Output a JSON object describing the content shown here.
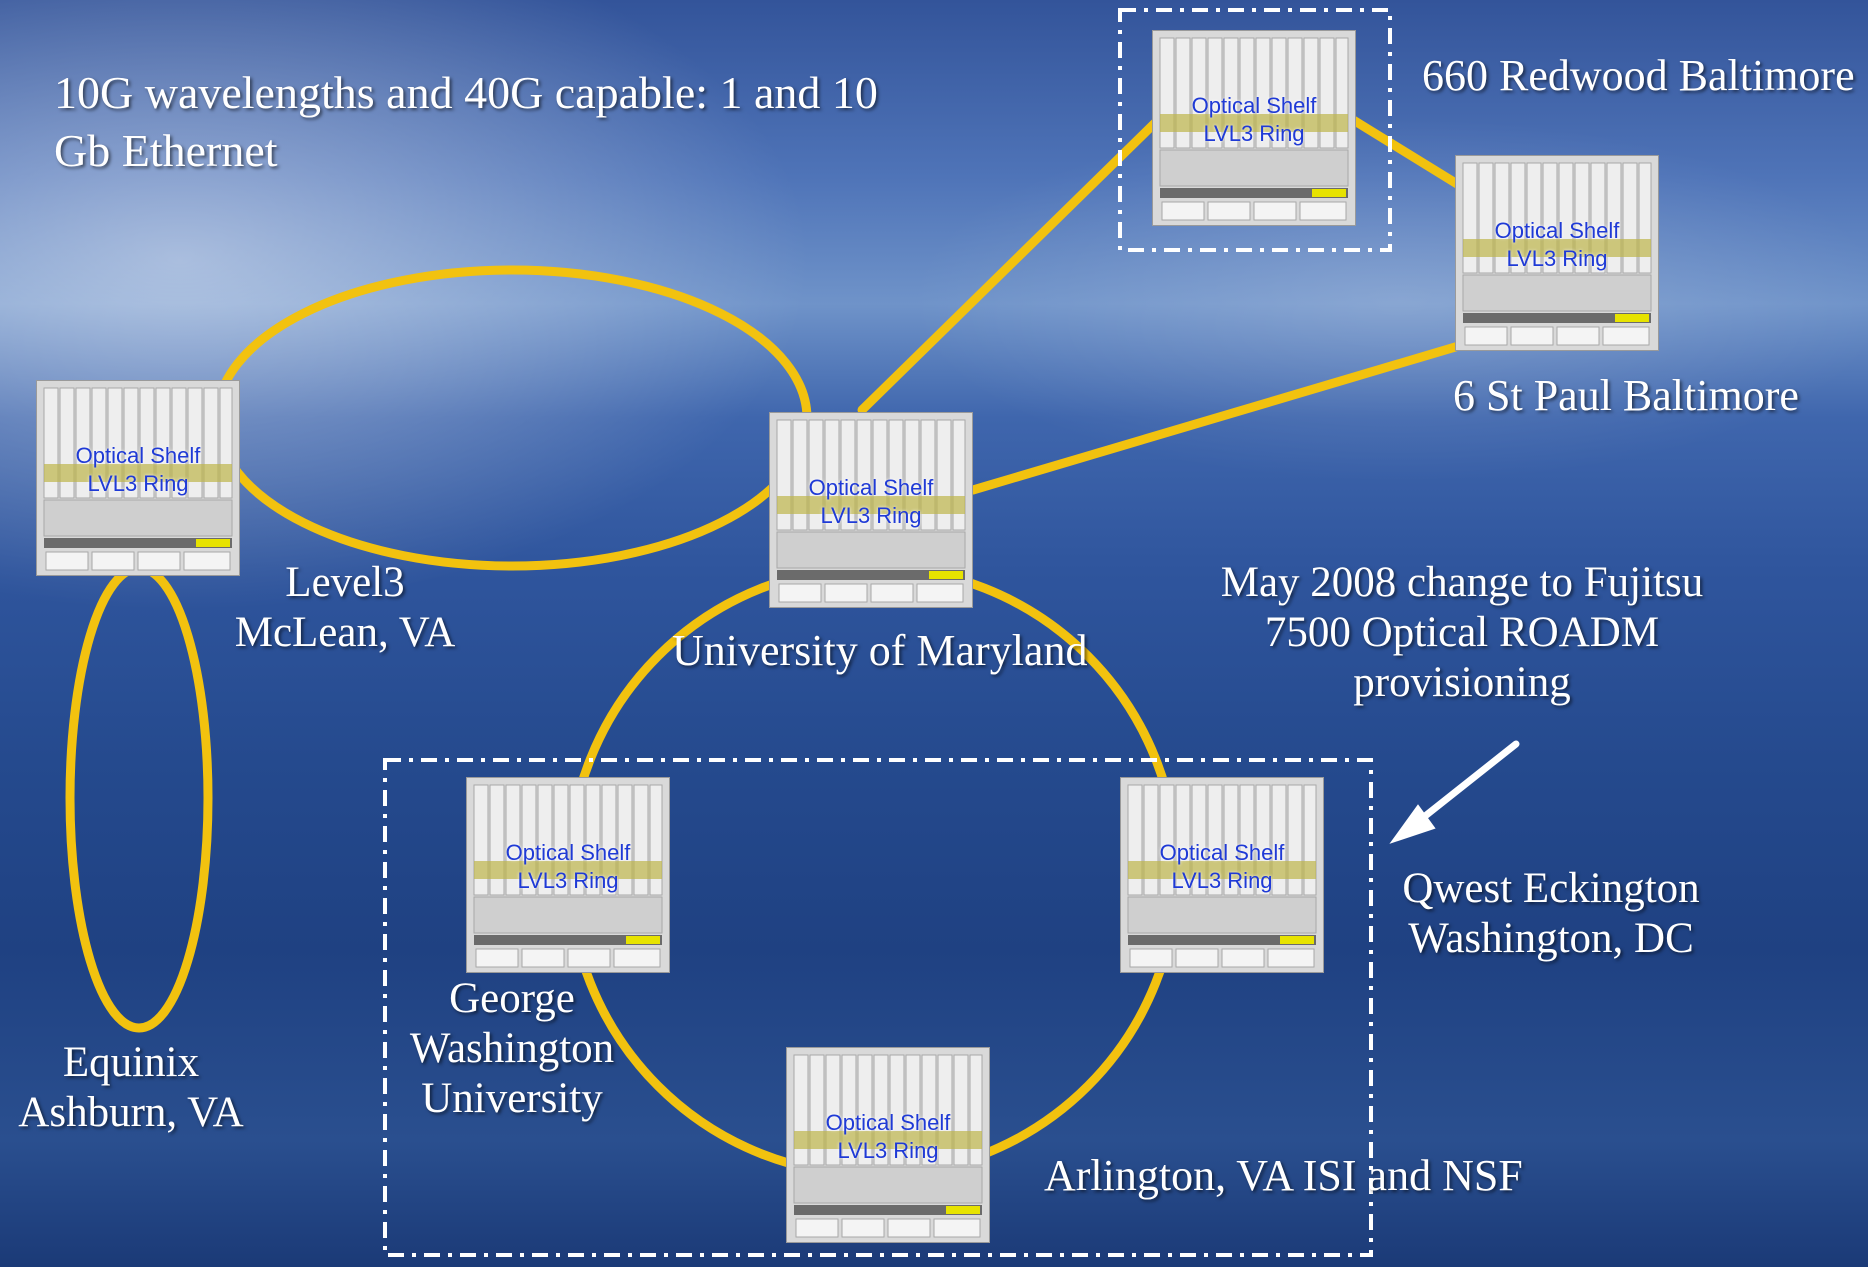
{
  "intro": {
    "line1": "10G wavelengths and 40G capable: 1 and 10",
    "line2": "Gb Ethernet"
  },
  "node_label": {
    "line1": "Optical Shelf",
    "line2": "LVL3 Ring"
  },
  "sites": {
    "redwood": "660 Redwood Baltimore",
    "stpaul": "6 St Paul Baltimore",
    "level3": {
      "line1": "Level3",
      "line2": "McLean, VA"
    },
    "umd": "University of Maryland",
    "equinix": {
      "line1": "Equinix",
      "line2": "Ashburn, VA"
    },
    "gwu": {
      "line1": "George",
      "line2": "Washington",
      "line3": "University"
    },
    "qwest": {
      "line1": "Qwest Eckington",
      "line2": "Washington, DC"
    },
    "arlington": "Arlington, VA ISI and NSF"
  },
  "note": {
    "line1": "May 2008 change to Fujitsu",
    "line2": "7500 Optical ROADM",
    "line3": "provisioning"
  },
  "colors": {
    "link": "#f2c20f",
    "label_text": "#ffffff",
    "shelf_text": "#1f3ad6",
    "group_border": "#ffffff"
  },
  "icons": [
    "optical-shelf-icon",
    "arrow-icon"
  ]
}
